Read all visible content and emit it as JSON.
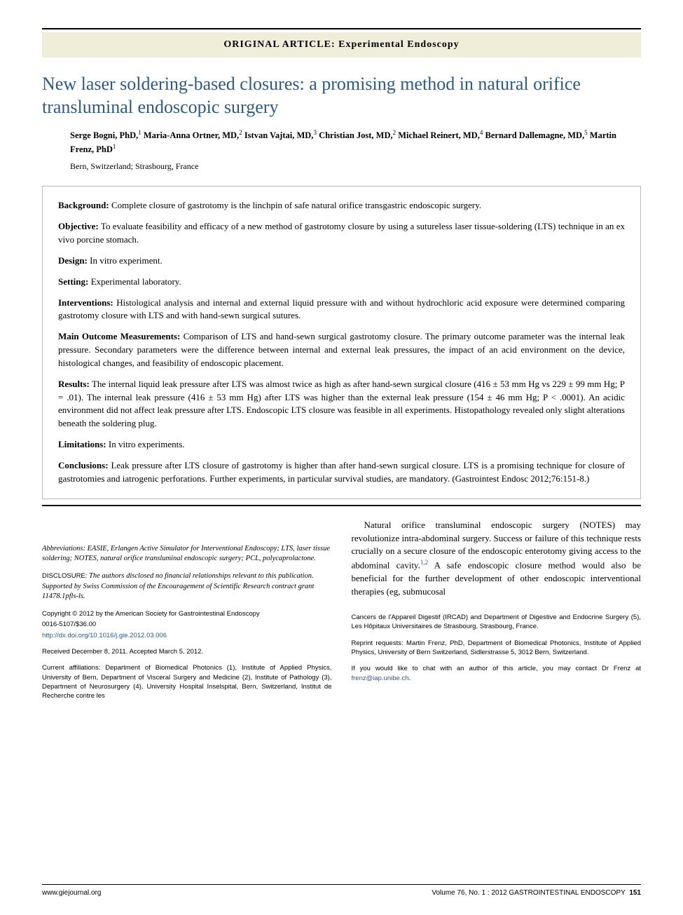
{
  "banner": "ORIGINAL ARTICLE: Experimental Endoscopy",
  "title": "New laser soldering-based closures: a promising method in natural orifice transluminal endoscopic surgery",
  "authors_html": "Serge Bogni, PhD,<sup>1</sup> Maria-Anna Ortner, MD,<sup>2</sup> Istvan Vajtai, MD,<sup>3</sup> Christian Jost, MD,<sup>2</sup> Michael Reinert, MD,<sup>4</sup> Bernard Dallemagne, MD,<sup>5</sup> Martin Frenz, PhD<sup>1</sup>",
  "affil": "Bern, Switzerland; Strasbourg, France",
  "abstract": {
    "background": {
      "label": "Background:",
      "text": "Complete closure of gastrotomy is the linchpin of safe natural orifice transgastric endoscopic surgery."
    },
    "objective": {
      "label": "Objective:",
      "text": "To evaluate feasibility and efficacy of a new method of gastrotomy closure by using a sutureless laser tissue-soldering (LTS) technique in an ex vivo porcine stomach."
    },
    "design": {
      "label": "Design:",
      "text": "In vitro experiment."
    },
    "setting": {
      "label": "Setting:",
      "text": "Experimental laboratory."
    },
    "interventions": {
      "label": "Interventions:",
      "text": "Histological analysis and internal and external liquid pressure with and without hydrochloric acid exposure were determined comparing gastrotomy closure with LTS and with hand-sewn surgical sutures."
    },
    "outcomes": {
      "label": "Main Outcome Measurements:",
      "text": "Comparison of LTS and hand-sewn surgical gastrotomy closure. The primary outcome parameter was the internal leak pressure. Secondary parameters were the difference between internal and external leak pressures, the impact of an acid environment on the device, histological changes, and feasibility of endoscopic placement."
    },
    "results": {
      "label": "Results:",
      "text": "The internal liquid leak pressure after LTS was almost twice as high as after hand-sewn surgical closure (416 ± 53 mm Hg vs 229 ± 99 mm Hg; P = .01). The internal leak pressure (416 ± 53 mm Hg) after LTS was higher than the external leak pressure (154 ± 46 mm Hg; P < .0001). An acidic environment did not affect leak pressure after LTS. Endoscopic LTS closure was feasible in all experiments. Histopathology revealed only slight alterations beneath the soldering plug."
    },
    "limitations": {
      "label": "Limitations:",
      "text": "In vitro experiments."
    },
    "conclusions": {
      "label": "Conclusions:",
      "text": "Leak pressure after LTS closure of gastrotomy is higher than after hand-sewn surgical closure. LTS is a promising technique for closure of gastrotomies and iatrogenic perforations. Further experiments, in particular survival studies, are mandatory. (Gastrointest Endosc 2012;76:151-8.)"
    }
  },
  "abbrev": "Abbreviations: EASIE, Erlangen Active Simulator for Interventional Endoscopy; LTS, laser tissue soldering; NOTES, natural orifice transluminal endoscopic surgery; PCL, polycaprolactone.",
  "disclosure_lead": "DISCLOSURE:",
  "disclosure": "The authors disclosed no financial relationships relevant to this publication. Supported by Swiss Commission of the Encouragement of Scientific Research contract grant 11478.1pfls-ls.",
  "copyright1": "Copyright © 2012 by the American Society for Gastrointestinal Endoscopy",
  "copyright2": "0016-5107/$36.00",
  "doi": "http://dx.doi.org/10.1016/j.gie.2012.03.006",
  "dates": "Received December 8, 2011. Accepted March 5, 2012.",
  "curr_affils": "Current affiliations: Department of Biomedical Photonics (1), Institute of Applied Physics, University of Bern, Department of Visceral Surgery and Medicine (2), Institute of Pathology (3), Department of Neurosurgery (4), University Hospital Inselspital, Bern, Switzerland, Institut de Recherche contre les",
  "body_para": "Natural orifice transluminal endoscopic surgery (NOTES) may revolutionize intra-abdominal surgery. Success or failure of this technique rests crucially on a secure closure of the endoscopic enterotomy giving access to the abdominal cavity.",
  "body_refs": "1,2",
  "body_para2": " A safe endoscopic closure method would also be beneficial for the further development of other endoscopic interventional therapies (eg, submucosal",
  "right_affils": "Cancers de l'Appareil Digestif (IRCAD) and Department of Digestive and Endocrine Surgery (5), Les Hôpitaux Universitaires de Strasbourg, Strasbourg, France.",
  "reprint": "Reprint requests: Martin Frenz, PhD, Department of Biomedical Photonics, Institute of Applied Physics, University of Bern Switzerland, Sidlerstrasse 5, 3012 Bern, Switzerland.",
  "contact_pre": "If you would like to chat with an author of this article, you may contact Dr Frenz at ",
  "contact_email": "frenz@iap.unibe.ch",
  "footer": {
    "left": "www.giejournal.org",
    "right_vol": "Volume 76, No. 1 : 2012 ",
    "right_journal": "GASTROINTESTINAL ENDOSCOPY",
    "page": "151"
  },
  "colors": {
    "banner_bg": "#f0eed8",
    "title": "#2a5a8a",
    "link": "#2a5a8a",
    "rule": "#000000",
    "box_border": "#bbbbbb"
  }
}
